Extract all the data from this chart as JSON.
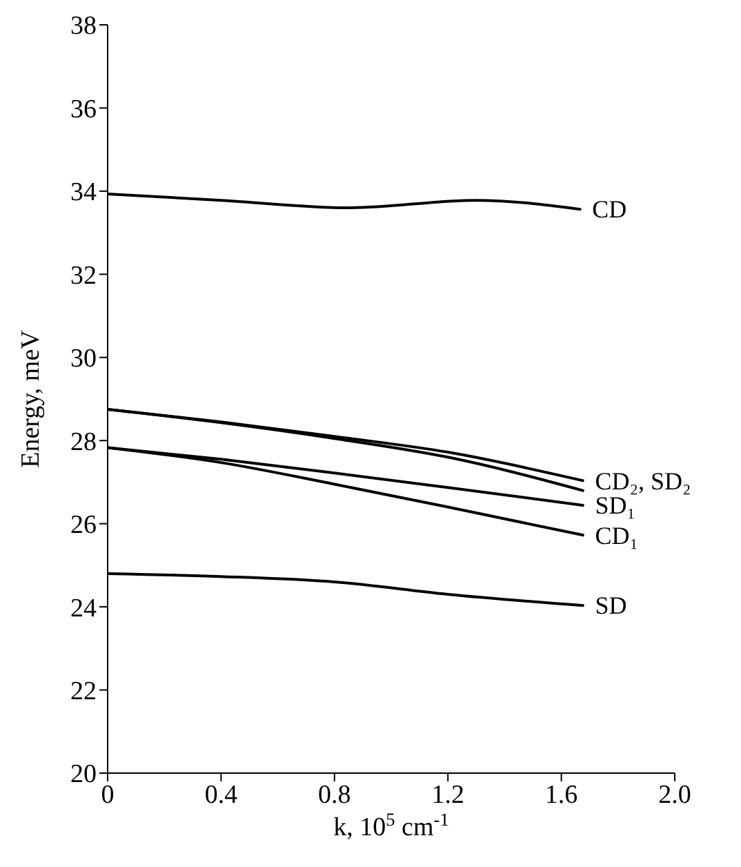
{
  "chart_data": {
    "type": "line",
    "xlabel": "k, 10$^{5}$ cm$^{-1}$",
    "ylabel": "Energy, meV",
    "xlim": [
      0,
      2.0
    ],
    "xticks": [
      0,
      0.4,
      0.8,
      1.2,
      1.6,
      {
        "value": 2.0,
        "label": "2.0"
      }
    ],
    "ylim": [
      20,
      38
    ],
    "yticks": [
      20,
      22,
      24,
      26,
      28,
      30,
      32,
      34,
      36,
      38
    ],
    "marker": "none",
    "line_style": "solid",
    "series": [
      {
        "name": "CD",
        "color": "#000000",
        "x": [
          0,
          0.4,
          0.85,
          1.3,
          1.67
        ],
        "values": [
          33.93,
          33.78,
          33.6,
          33.78,
          33.56
        ]
      },
      {
        "name": "CD₂, SD₂",
        "color": "#000000",
        "x": [
          0,
          0.4,
          0.8,
          1.2,
          1.68
        ],
        "values": [
          28.75,
          28.45,
          28.1,
          27.72,
          27.03
        ]
      },
      {
        "color": "#000000",
        "x": [
          0,
          0.4,
          0.8,
          1.2,
          1.68
        ],
        "values": [
          28.75,
          28.43,
          28.05,
          27.6,
          26.79
        ]
      },
      {
        "name": "SD₁",
        "color": "#000000",
        "x": [
          0,
          0.4,
          0.8,
          1.2,
          1.68
        ],
        "values": [
          27.83,
          27.55,
          27.22,
          26.87,
          26.44
        ]
      },
      {
        "name": "CD₁",
        "color": "#000000",
        "x": [
          0,
          0.4,
          0.8,
          1.2,
          1.68
        ],
        "values": [
          27.83,
          27.47,
          26.95,
          26.4,
          25.72
        ]
      },
      {
        "name": "SD",
        "color": "#000000",
        "x": [
          0,
          0.4,
          0.8,
          1.2,
          1.68
        ],
        "values": [
          24.8,
          24.73,
          24.6,
          24.3,
          24.03
        ]
      }
    ]
  }
}
